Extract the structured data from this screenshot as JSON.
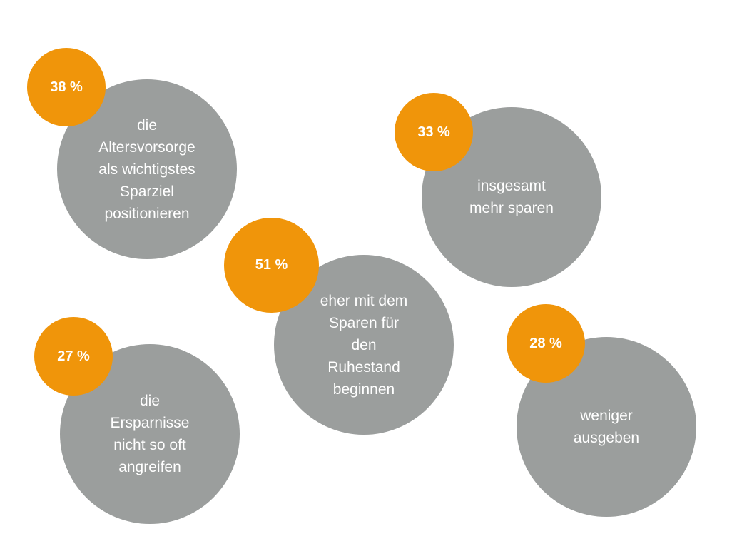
{
  "chart_data": {
    "type": "bubble",
    "series": [
      {
        "value": 38,
        "value_label": "38 %",
        "label": "die\nAltersvorsorge\nals wichtigstes\nSparziel\npositionieren"
      },
      {
        "value": 33,
        "value_label": "33 %",
        "label": "insgesamt\nmehr sparen"
      },
      {
        "value": 51,
        "value_label": "51 %",
        "label": "eher mit dem\nSparen für\nden\nRuhestand\nbeginnen"
      },
      {
        "value": 27,
        "value_label": "27 %",
        "label": "die\nErsparnisse\nnicht so oft\nangreifen"
      },
      {
        "value": 28,
        "value_label": "28 %",
        "label": "weniger\nausgeben"
      }
    ]
  },
  "colors": {
    "bubble": "#9b9e9d",
    "badge": "#f0950a",
    "text": "#ffffff"
  }
}
